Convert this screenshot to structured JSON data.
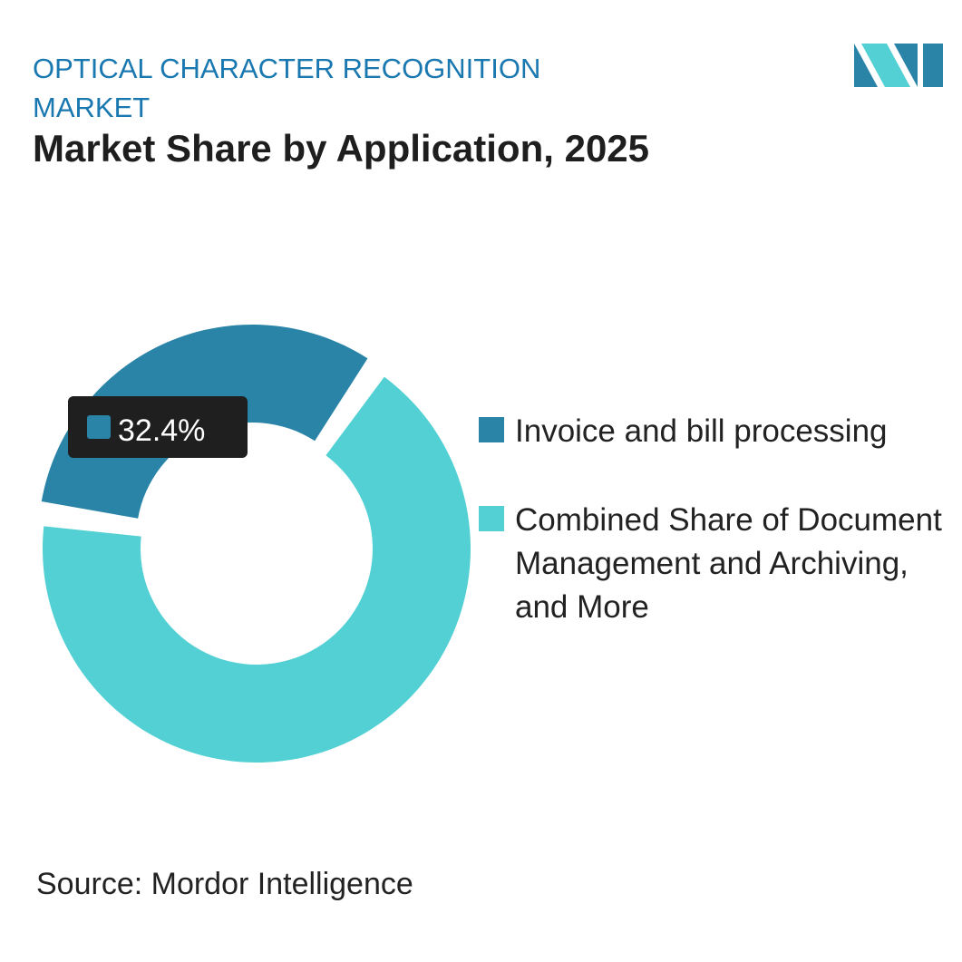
{
  "chart_data": {
    "type": "donut",
    "kicker": "OPTICAL CHARACTER RECOGNITION MARKET",
    "title": "Market Share by Application, 2025",
    "source": "Source: Mordor Intelligence",
    "categories": [
      "Invoice and bill processing",
      "Combined Share of Document Management and Archiving, and More"
    ],
    "values": [
      32.4,
      67.6
    ],
    "value_labels": [
      "32.4%",
      null
    ],
    "colors": [
      "#2a84a8",
      "#52d0d4"
    ]
  }
}
